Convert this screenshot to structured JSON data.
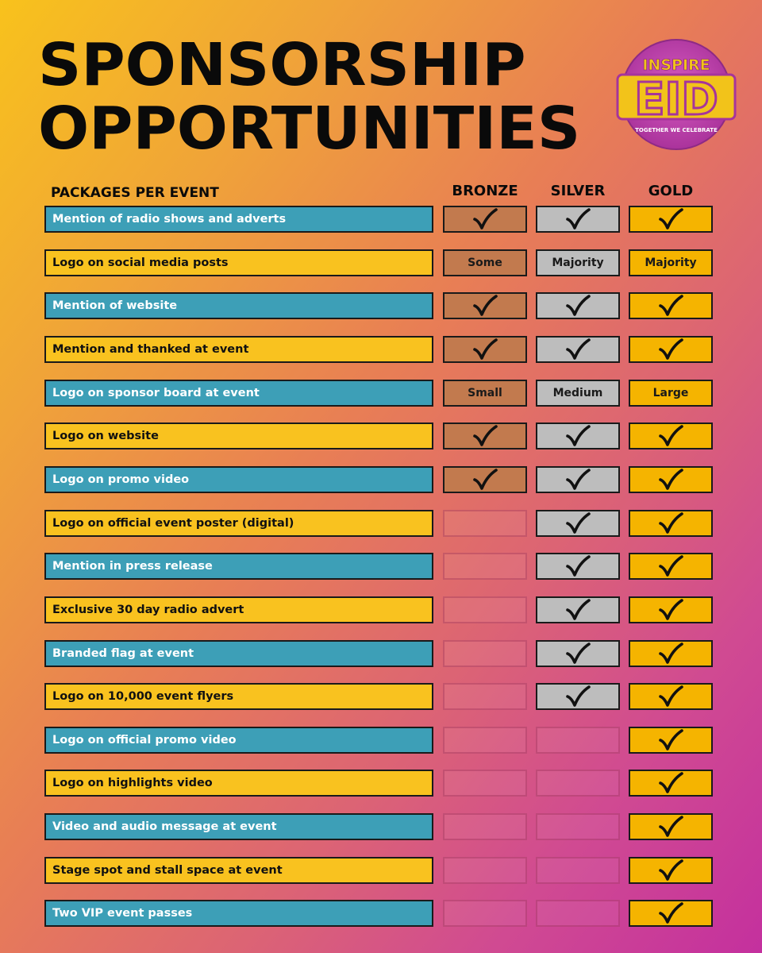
{
  "title": {
    "line1": "SPONSORSHIP",
    "line2": "OPPORTUNITIES"
  },
  "logo": {
    "top_text": "INSPIRE",
    "main_text": "EID",
    "tagline": "TOGETHER WE CELEBRATE",
    "colors": {
      "ring": "#b83aa8",
      "gold": "#f2c31a",
      "purple": "#a6349b"
    }
  },
  "table": {
    "packages_label": "PACKAGES PER EVENT",
    "tiers": [
      "BRONZE",
      "SILVER",
      "GOLD"
    ],
    "rows": [
      {
        "feature": "Mention of radio shows and adverts",
        "bronze": "check",
        "silver": "check",
        "gold": "check"
      },
      {
        "feature": "Logo on social media posts",
        "bronze": "Some",
        "silver": "Majority",
        "gold": "Majority"
      },
      {
        "feature": "Mention of website",
        "bronze": "check",
        "silver": "check",
        "gold": "check"
      },
      {
        "feature": "Mention and thanked at event",
        "bronze": "check",
        "silver": "check",
        "gold": "check"
      },
      {
        "feature": "Logo on sponsor board at event",
        "bronze": "Small",
        "silver": "Medium",
        "gold": "Large"
      },
      {
        "feature": "Logo on website",
        "bronze": "check",
        "silver": "check",
        "gold": "check"
      },
      {
        "feature": "Logo on promo video",
        "bronze": "check",
        "silver": "check",
        "gold": "check"
      },
      {
        "feature": "Logo on official event poster (digital)",
        "bronze": "",
        "silver": "check",
        "gold": "check"
      },
      {
        "feature": "Mention in press release",
        "bronze": "",
        "silver": "check",
        "gold": "check"
      },
      {
        "feature": "Exclusive 30 day radio advert",
        "bronze": "",
        "silver": "check",
        "gold": "check"
      },
      {
        "feature": "Branded flag at event",
        "bronze": "",
        "silver": "check",
        "gold": "check"
      },
      {
        "feature": "Logo on 10,000 event flyers",
        "bronze": "",
        "silver": "check",
        "gold": "check"
      },
      {
        "feature": "Logo on official promo video",
        "bronze": "",
        "silver": "",
        "gold": "check"
      },
      {
        "feature": "Logo on highlights video",
        "bronze": "",
        "silver": "",
        "gold": "check"
      },
      {
        "feature": "Video and audio message at event",
        "bronze": "",
        "silver": "",
        "gold": "check"
      },
      {
        "feature": "Stage spot and stall space at event",
        "bronze": "",
        "silver": "",
        "gold": "check"
      },
      {
        "feature": "Two VIP event passes",
        "bronze": "",
        "silver": "",
        "gold": "check"
      }
    ]
  },
  "colors": {
    "feature_blue": "#3d9fb7",
    "feature_yellow": "#f9c21f",
    "bronze": "#c27a4e",
    "silver": "#bdbdbd",
    "gold": "#f5b400"
  },
  "icons": {
    "check": "check-icon"
  }
}
